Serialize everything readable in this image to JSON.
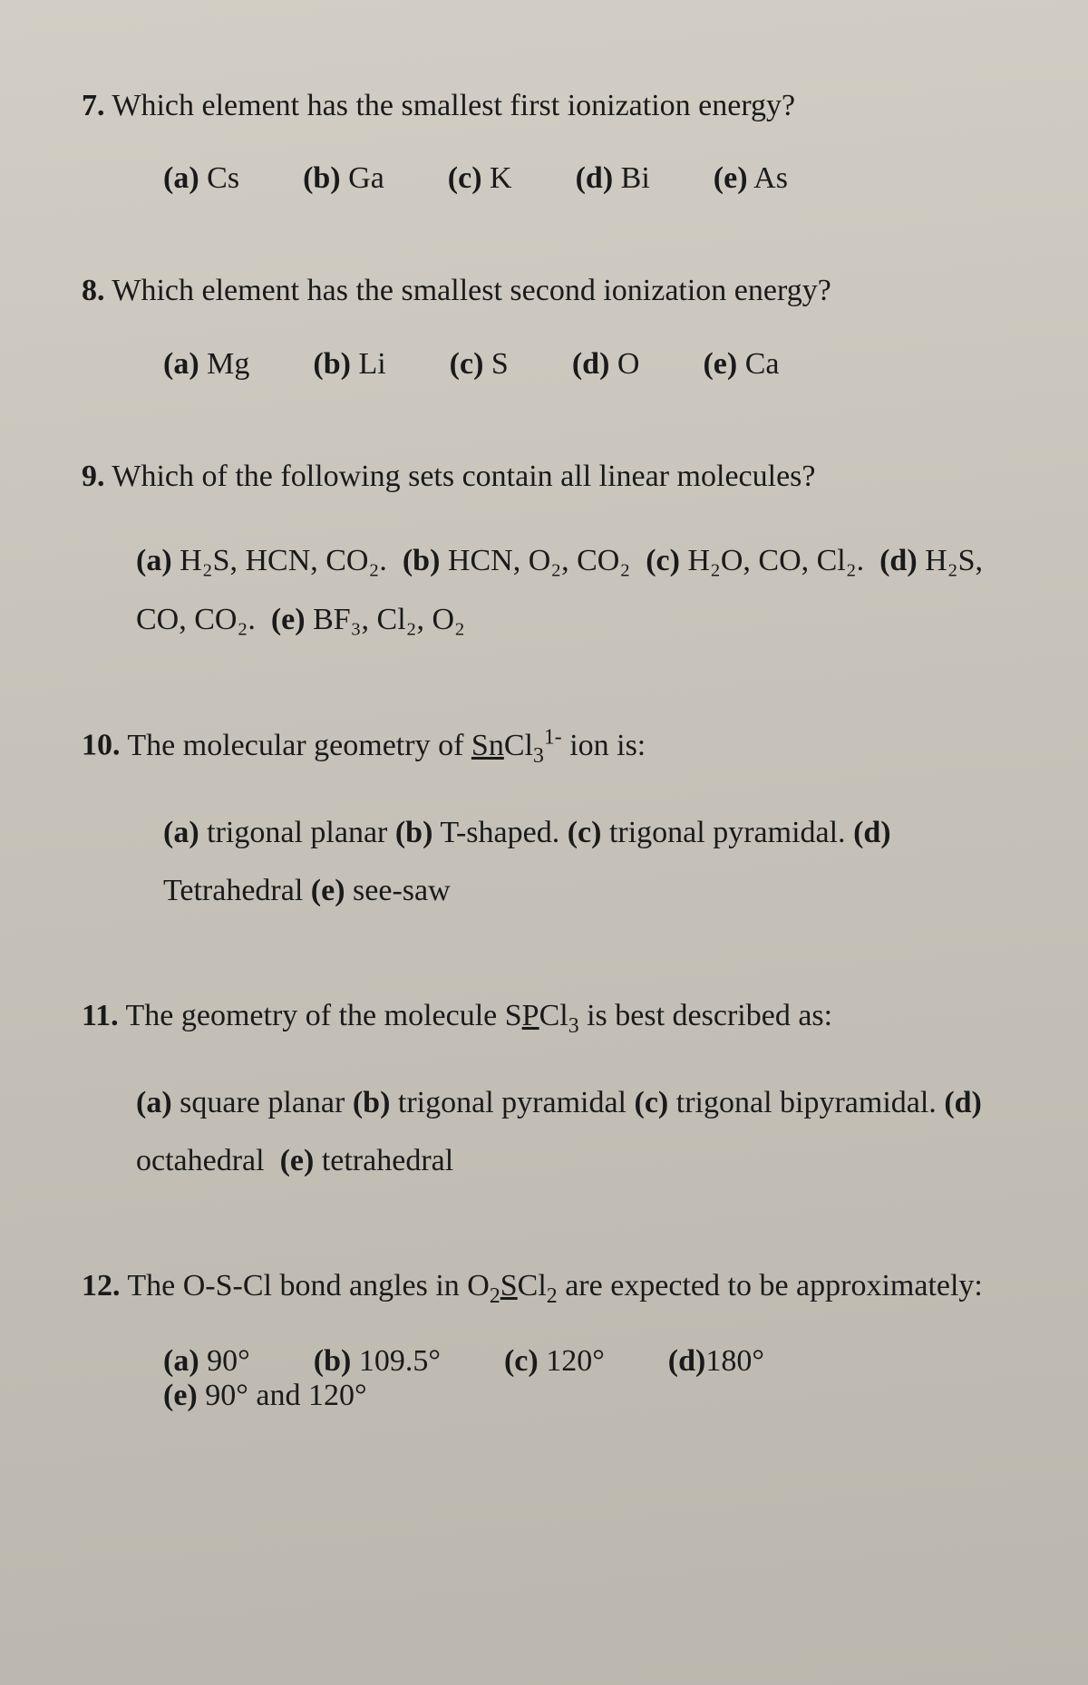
{
  "page": {
    "background_color": "#c8c4bc",
    "text_color": "#1a1a1a",
    "font_family": "Times New Roman",
    "base_fontsize_pt": 26
  },
  "questions": [
    {
      "number": "7.",
      "prompt": "Which element has the smallest first ionization energy?",
      "options": [
        {
          "label": "(a)",
          "text": "Cs"
        },
        {
          "label": "(b)",
          "text": "Ga"
        },
        {
          "label": "(c)",
          "text": "K"
        },
        {
          "label": "(d)",
          "text": "Bi"
        },
        {
          "label": "(e)",
          "text": "As"
        }
      ],
      "layout": "row"
    },
    {
      "number": "8.",
      "prompt": "Which element has the smallest second ionization energy?",
      "options": [
        {
          "label": "(a)",
          "text": "Mg"
        },
        {
          "label": "(b)",
          "text": "Li"
        },
        {
          "label": "(c)",
          "text": "S"
        },
        {
          "label": "(d)",
          "text": "O"
        },
        {
          "label": "(e)",
          "text": "Ca"
        }
      ],
      "layout": "row"
    },
    {
      "number": "9.",
      "prompt": "Which of the following sets contain all linear molecules?",
      "options_inline": "(a) H₂S, HCN, CO₂.  (b) HCN, O₂, CO₂  (c) H₂O, CO, Cl₂.  (d) H₂S, CO, CO₂.  (e) BF₃, Cl₂, O₂",
      "options": [
        {
          "label": "(a)",
          "text": "H₂S, HCN, CO₂."
        },
        {
          "label": "(b)",
          "text": "HCN, O₂, CO₂"
        },
        {
          "label": "(c)",
          "text": "H₂O, CO, Cl₂."
        },
        {
          "label": "(d)",
          "text": "H₂S, CO, CO₂."
        },
        {
          "label": "(e)",
          "text": "BF₃, Cl₂, O₂"
        }
      ],
      "layout": "inline"
    },
    {
      "number": "10.",
      "prompt_html": "The molecular geometry of <span class='ucentral'>Sn</span>Cl₃¹⁻ ion is:",
      "prompt": "The molecular geometry of SnCl₃¹⁻ ion is:",
      "options": [
        {
          "label": "(a)",
          "text": "trigonal planar"
        },
        {
          "label": "(b)",
          "text": "T-shaped."
        },
        {
          "label": "(c)",
          "text": "trigonal pyramidal."
        },
        {
          "label": "(d)",
          "text": "Tetrahedral"
        },
        {
          "label": "(e)",
          "text": "see-saw"
        }
      ],
      "layout": "inline"
    },
    {
      "number": "11.",
      "prompt_html": "The geometry of the molecule S<span class='ucentral'>P</span>Cl₃ is best described as:",
      "prompt": "The geometry of the molecule SPCl₃ is best described as:",
      "options": [
        {
          "label": "(a)",
          "text": "square planar"
        },
        {
          "label": "(b)",
          "text": "trigonal pyramidal"
        },
        {
          "label": "(c)",
          "text": "trigonal bipyramidal."
        },
        {
          "label": "(d)",
          "text": "octahedral"
        },
        {
          "label": "(e)",
          "text": "tetrahedral"
        }
      ],
      "layout": "inline"
    },
    {
      "number": "12.",
      "prompt_html": "The O-S-Cl bond angles in O₂<span class='ucentral'>S</span>Cl₂ are expected to be approximately:",
      "prompt": "The O-S-Cl bond angles in O₂SCl₂ are expected to be approximately:",
      "options": [
        {
          "label": "(a)",
          "text": "90°"
        },
        {
          "label": "(b)",
          "text": "109.5°"
        },
        {
          "label": "(c)",
          "text": "120°"
        },
        {
          "label": "(d)",
          "text": "180°"
        },
        {
          "label": "(e)",
          "text": "90° and 120°"
        }
      ],
      "layout": "row"
    }
  ]
}
